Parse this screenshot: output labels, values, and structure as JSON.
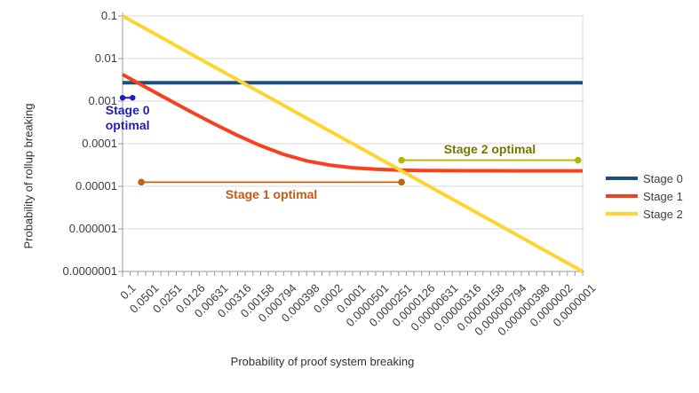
{
  "chart_data": {
    "type": "line",
    "x_scale": "log",
    "y_scale": "log",
    "x_range": [
      0.1,
      1e-07
    ],
    "y_range": [
      0.1,
      1e-07
    ],
    "grid": "horizontal",
    "legend_position": "right",
    "xlabel": "Probability of proof system breaking",
    "ylabel": "Probability of rollup breaking",
    "y_tick_labels": [
      "0.1",
      "0.01",
      "0.001",
      "0.0001",
      "0.00001",
      "0.000001",
      "0.0000001"
    ],
    "y_tick_values": [
      0.1,
      0.01,
      0.001,
      0.0001,
      1e-05,
      1e-06,
      1e-07
    ],
    "x_tick_labels": [
      "0.1",
      "0.0501",
      "0.0251",
      "0.0126",
      "0.00631",
      "0.00316",
      "0.00158",
      "0.000794",
      "0.000398",
      "0.0002",
      "0.0001",
      "0.0000501",
      "0.0000251",
      "0.0000126",
      "0.00000631",
      "0.00000316",
      "0.00000158",
      "0.000000794",
      "0.000000398",
      "0.0000002",
      "0.0000001"
    ],
    "x_tick_values": [
      0.1,
      0.0501,
      0.0251,
      0.0126,
      0.00631,
      0.00316,
      0.00158,
      0.000794,
      0.000398,
      0.0002,
      0.0001,
      5.01e-05,
      2.51e-05,
      1.26e-05,
      6.31e-06,
      3.16e-06,
      1.58e-06,
      7.94e-07,
      3.98e-07,
      2e-07,
      1e-07
    ],
    "series": [
      {
        "name": "Stage 0",
        "color": "#1c4e80",
        "x": [
          0.1,
          0.0501,
          0.0251,
          0.0126,
          0.00631,
          0.00316,
          0.00158,
          0.000794,
          0.000398,
          0.0002,
          0.0001,
          5.01e-05,
          2.51e-05,
          1.26e-05,
          6.31e-06,
          3.16e-06,
          1.58e-06,
          7.94e-07,
          3.98e-07,
          2e-07,
          1e-07
        ],
        "y": [
          0.0027,
          0.0027,
          0.0027,
          0.0027,
          0.0027,
          0.0027,
          0.0027,
          0.0027,
          0.0027,
          0.0027,
          0.0027,
          0.0027,
          0.0027,
          0.0027,
          0.0027,
          0.0027,
          0.0027,
          0.0027,
          0.0027,
          0.0027,
          0.0027
        ]
      },
      {
        "name": "Stage 1",
        "color": "#f5411d",
        "x": [
          0.1,
          0.0501,
          0.0251,
          0.0126,
          0.00631,
          0.00316,
          0.00158,
          0.000794,
          0.000398,
          0.0002,
          0.0001,
          5.01e-05,
          2.51e-05,
          1.26e-05,
          6.31e-06,
          3.16e-06,
          1.58e-06,
          7.94e-07,
          3.98e-07,
          2e-07,
          1e-07
        ],
        "y": [
          0.00422,
          0.00213,
          0.00108,
          0.000552,
          0.000288,
          0.000156,
          8.94e-05,
          5.63e-05,
          3.97e-05,
          3.14e-05,
          2.72e-05,
          2.51e-05,
          2.41e-05,
          2.35e-05,
          2.33e-05,
          2.31e-05,
          2.31e-05,
          2.3e-05,
          2.3e-05,
          2.3e-05,
          2.3e-05
        ]
      },
      {
        "name": "Stage 2",
        "color": "#ffd430",
        "x": [
          0.1,
          0.0501,
          0.0251,
          0.0126,
          0.00631,
          0.00316,
          0.00158,
          0.000794,
          0.000398,
          0.0002,
          0.0001,
          5.01e-05,
          2.51e-05,
          1.26e-05,
          6.31e-06,
          3.16e-06,
          1.58e-06,
          7.94e-07,
          3.98e-07,
          2e-07,
          1e-07
        ],
        "y": [
          0.1,
          0.0501,
          0.0251,
          0.0126,
          0.00631,
          0.00316,
          0.00158,
          0.000794,
          0.000398,
          0.0002,
          0.0001,
          5.01e-05,
          2.51e-05,
          1.26e-05,
          6.31e-06,
          3.16e-06,
          1.58e-06,
          7.94e-07,
          3.98e-07,
          2e-07,
          1e-07
        ]
      }
    ],
    "annotations": [
      {
        "id": "stage0-optimal",
        "lines": [
          "Stage 0",
          "optimal"
        ],
        "color": "#1e1ec0",
        "text_color": "#1e1ec0",
        "x1": 0.1,
        "x2": 0.074,
        "y": 0.0012,
        "label_position": "below",
        "dot_radius": 3.2,
        "line_width": 2
      },
      {
        "id": "stage1-optimal",
        "lines": [
          "Stage 1 optimal"
        ],
        "color": "#c0650d",
        "text_color": "#c55a11",
        "x1": 0.057,
        "x2": 2.3e-05,
        "y": 1.25e-05,
        "label_position": "below",
        "dot_radius": 3.8,
        "line_width": 1.8
      },
      {
        "id": "stage2-optimal",
        "lines": [
          "Stage 2 optimal"
        ],
        "color": "#b2b800",
        "text_color": "#767600",
        "x1": 2.3e-05,
        "x2": 1.15e-07,
        "y": 4.1e-05,
        "label_position": "above",
        "dot_radius": 3.8,
        "line_width": 1.8
      }
    ]
  }
}
